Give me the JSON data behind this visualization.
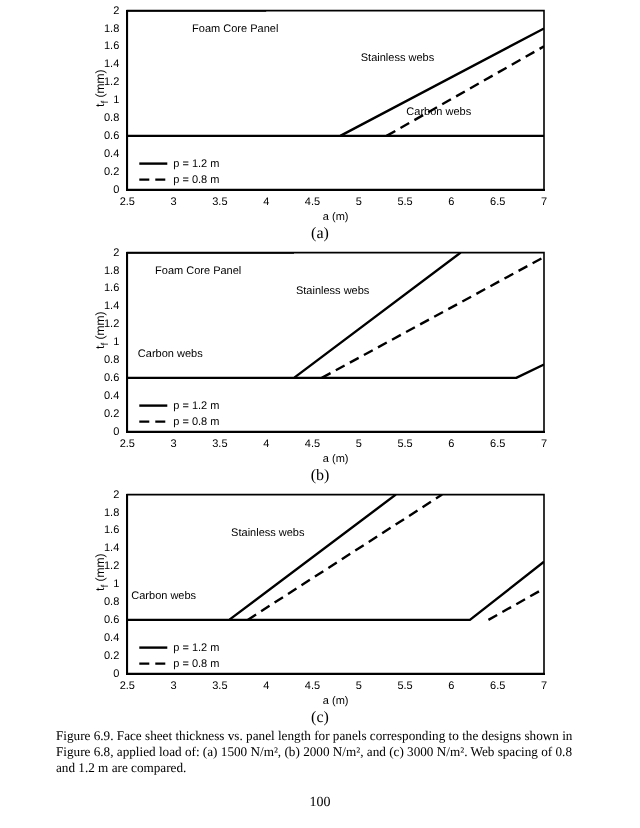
{
  "chart_data": [
    {
      "type": "line",
      "title": "(a)",
      "xlabel": "a (m)",
      "ylabel": "t$_{f}$ (mm)",
      "xlim": [
        2.5,
        7
      ],
      "xticks": [
        2.5,
        3,
        3.5,
        4,
        4.5,
        5,
        5.5,
        6,
        6.5,
        7
      ],
      "ylim": [
        0,
        2
      ],
      "yticks": [
        0,
        0.2,
        0.4,
        0.6,
        0.8,
        1,
        1.2,
        1.4,
        1.6,
        1.8,
        2
      ],
      "grid": false,
      "legend": "bottom left",
      "marker": "none",
      "series": [
        {
          "name": "p = 1.2 m",
          "color": "#000000",
          "line_style": "solid",
          "x": [
            2.5,
            4.8,
            7.0
          ],
          "values": [
            0.6,
            0.6,
            1.8
          ]
        },
        {
          "name": "p = 0.8 m",
          "color": "#000000",
          "line_style": "dashed",
          "x": [
            5.3,
            7.0
          ],
          "values": [
            0.6,
            1.6
          ]
        },
        {
          "color": "#000000",
          "line_style": "solid",
          "x": [
            4.8,
            7.0
          ],
          "values": [
            0.6,
            0.6
          ]
        },
        {
          "color": "#000000",
          "line_style": "solid",
          "x": [
            2.5,
            4.0
          ],
          "values": [
            2,
            2
          ]
        }
      ],
      "annotations": [
        {
          "text": "Foam Core Panel",
          "x": 3.2,
          "y": 2
        },
        {
          "text": "Stainless webs",
          "x": 5.9,
          "y": 1.2
        },
        {
          "text": "Carbon webs",
          "x": 6.3,
          "y": 0.6
        }
      ]
    },
    {
      "type": "line",
      "title": "(b)",
      "xlabel": "a (m)",
      "ylabel": "t$_{f}$ (mm)",
      "xlim": [
        2.5,
        7
      ],
      "xticks": [
        2.5,
        3,
        3.5,
        4,
        4.5,
        5,
        5.5,
        6,
        6.5,
        7
      ],
      "ylim": [
        0,
        2
      ],
      "yticks": [
        0,
        0.2,
        0.4,
        0.6,
        0.8,
        1,
        1.2,
        1.4,
        1.6,
        1.8,
        2
      ],
      "grid": false,
      "legend": "bottom left",
      "marker": "none",
      "series": [
        {
          "name": "p = 1.2 m",
          "color": "#000000",
          "line_style": "solid",
          "x": [
            2.5,
            4.3,
            6.1
          ],
          "values": [
            0.6,
            0.6,
            2
          ]
        },
        {
          "name": "p = 0.8 m",
          "color": "#000000",
          "line_style": "dashed",
          "x": [
            4.6,
            7.0
          ],
          "values": [
            0.6,
            1.95
          ]
        },
        {
          "color": "#000000",
          "line_style": "solid",
          "x": [
            4.3,
            6.7,
            7.0
          ],
          "values": [
            0.6,
            0.6,
            0.75
          ]
        },
        {
          "color": "#000000",
          "line_style": "solid",
          "x": [
            2.5,
            4.3
          ],
          "values": [
            2,
            2
          ]
        }
      ],
      "annotations": [
        {
          "text": "Foam Core Panel",
          "x": 2.8,
          "y": 2
        },
        {
          "text": "Stainless webs",
          "x": 5.2,
          "y": 1.3
        },
        {
          "text": "Carbon webs",
          "x": 3.4,
          "y": 0.6
        }
      ]
    },
    {
      "type": "line",
      "title": "(c)",
      "xlabel": "a (m)",
      "ylabel": "t$_{f}$ (mm)",
      "xlim": [
        2.5,
        7
      ],
      "xticks": [
        2.5,
        3,
        3.5,
        4,
        4.5,
        5,
        5.5,
        6,
        6.5,
        7
      ],
      "ylim": [
        0,
        2
      ],
      "yticks": [
        0,
        0.2,
        0.4,
        0.6,
        0.8,
        1,
        1.2,
        1.4,
        1.6,
        1.8,
        2
      ],
      "grid": false,
      "legend": "bottom left",
      "marker": "none",
      "series": [
        {
          "name": "p = 1.2 m",
          "color": "#000000",
          "line_style": "solid",
          "x": [
            2.5,
            3.6,
            5.4
          ],
          "values": [
            0.6,
            0.6,
            2
          ]
        },
        {
          "name": "p = 0.8 m",
          "color": "#000000",
          "line_style": "dashed",
          "x": [
            3.8,
            5.9
          ],
          "values": [
            0.6,
            2
          ]
        },
        {
          "color": "#000000",
          "line_style": "solid",
          "x": [
            3.6,
            6.2,
            7.0
          ],
          "values": [
            0.6,
            0.6,
            1.25
          ]
        },
        {
          "color": "#000000",
          "line_style": "dashed",
          "x": [
            6.4,
            7.0
          ],
          "values": [
            0.6,
            0.95
          ]
        }
      ],
      "annotations": [
        {
          "text": "Stainless webs",
          "x": 4.5,
          "y": 1.3
        },
        {
          "text": "Carbon webs",
          "x": 2.9,
          "y": 0.6
        },
        "Figure 6.9. Face sheet thickness vs. panel length for panels corresponding to the designs shown in Figure 6.8, applied load of: (a) 1500 N/m², (b) 2000 N/m², and (c) 3000 N/m². Web spacing of 0.8 and 1.2 m are compared.",
        "100"
      ]
    }
  ]
}
